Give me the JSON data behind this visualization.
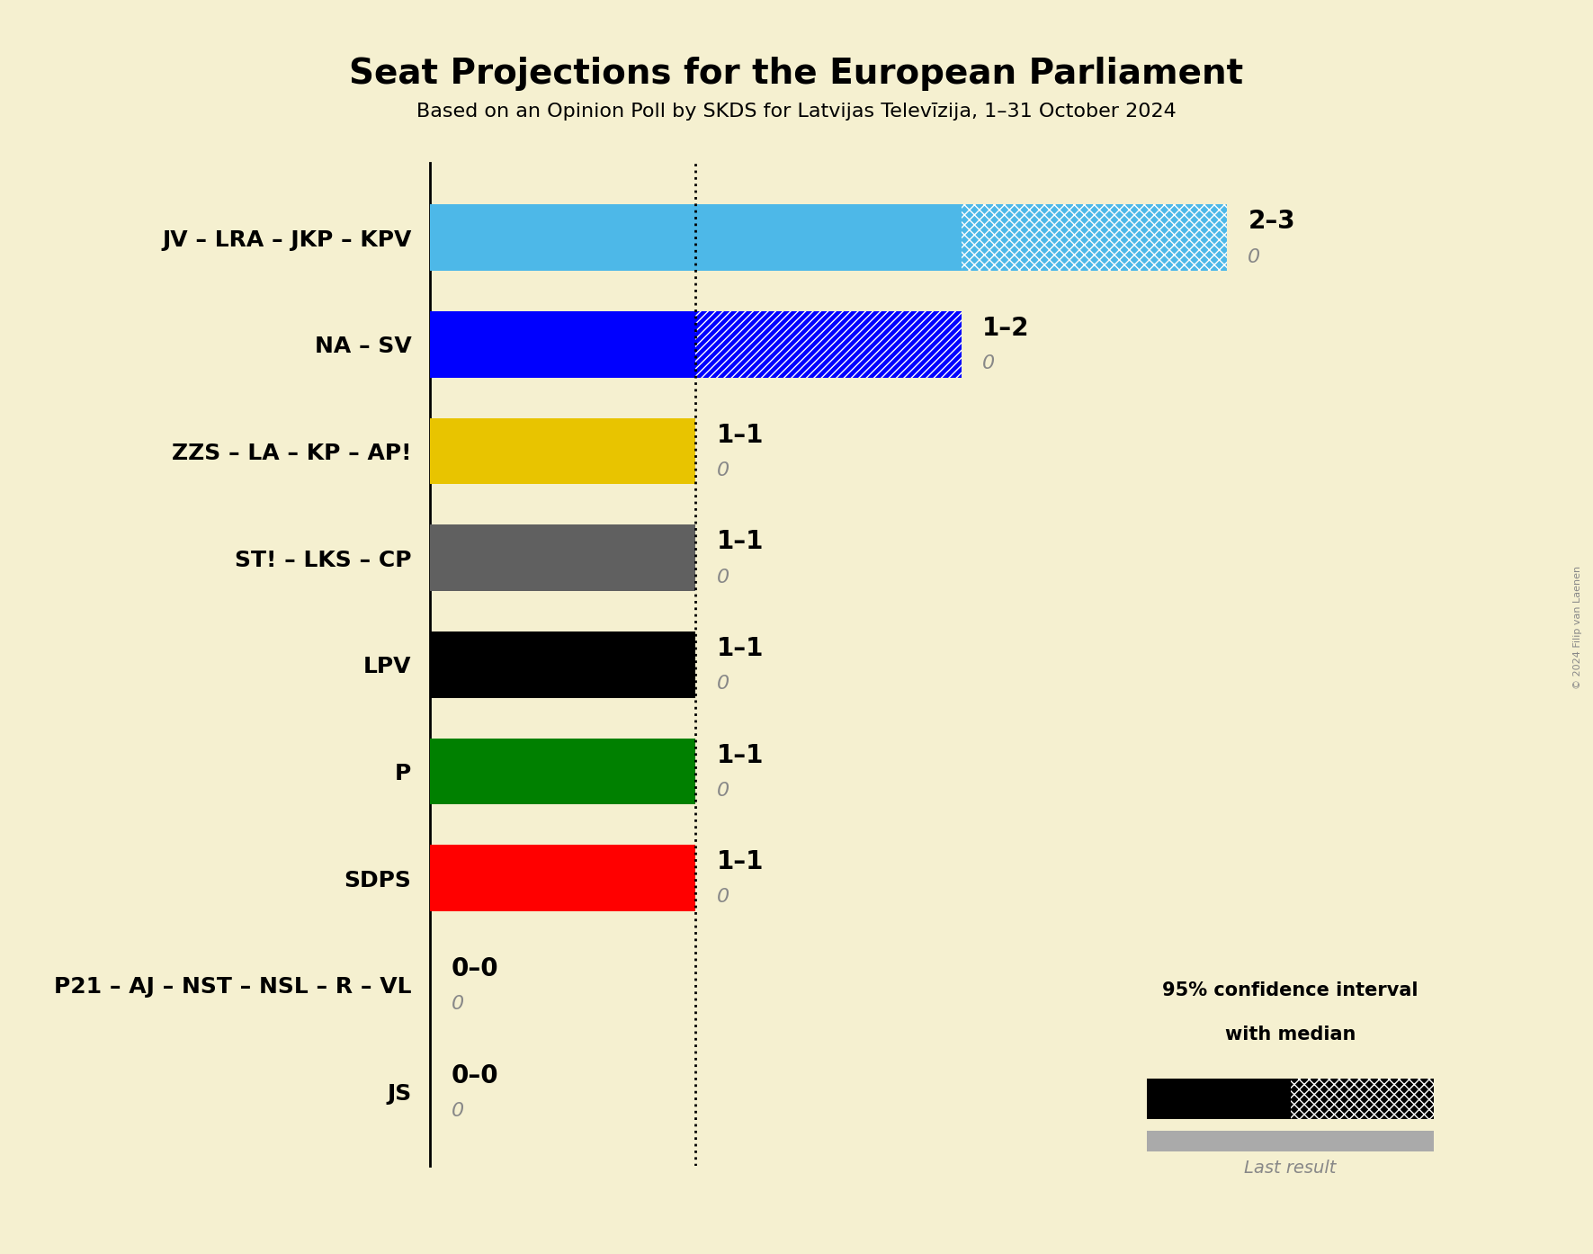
{
  "title": "Seat Projections for the European Parliament",
  "subtitle": "Based on an Opinion Poll by SKDS for Latvijas Televīzija, 1–31 October 2024",
  "copyright": "© 2024 Filip van Laenen",
  "background_color": "#f5f0d0",
  "parties": [
    "JV – LRA – JKP – KPV",
    "NA – SV",
    "ZZS – LA – KP – AP!",
    "ST! – LKS – CP",
    "LPV",
    "P",
    "SDPS",
    "P21 – AJ – NST – NSL – R – VL",
    "JS"
  ],
  "median_seats": [
    2,
    1,
    1,
    1,
    1,
    1,
    1,
    0,
    0
  ],
  "low_seats": [
    2,
    1,
    1,
    1,
    1,
    1,
    1,
    0,
    0
  ],
  "high_seats": [
    3,
    2,
    1,
    1,
    1,
    1,
    1,
    0,
    0
  ],
  "last_result": [
    0,
    0,
    0,
    0,
    0,
    0,
    0,
    0,
    0
  ],
  "bar_colors": [
    "#4db8e8",
    "#0000ff",
    "#e8c400",
    "#606060",
    "#000000",
    "#008000",
    "#ff0000",
    "#ffffff",
    "#ffffff"
  ],
  "hatch_patterns": [
    "xxx",
    "////",
    null,
    null,
    null,
    null,
    null,
    null,
    null
  ],
  "label_low_high": [
    "2–3",
    "1–2",
    "1–1",
    "1–1",
    "1–1",
    "1–1",
    "1–1",
    "0–0",
    "0–0"
  ],
  "xlim_max": 3.6,
  "dotted_line_x": 1,
  "legend_text_line1": "95% confidence interval",
  "legend_text_line2": "with median",
  "legend_last_result": "Last result"
}
